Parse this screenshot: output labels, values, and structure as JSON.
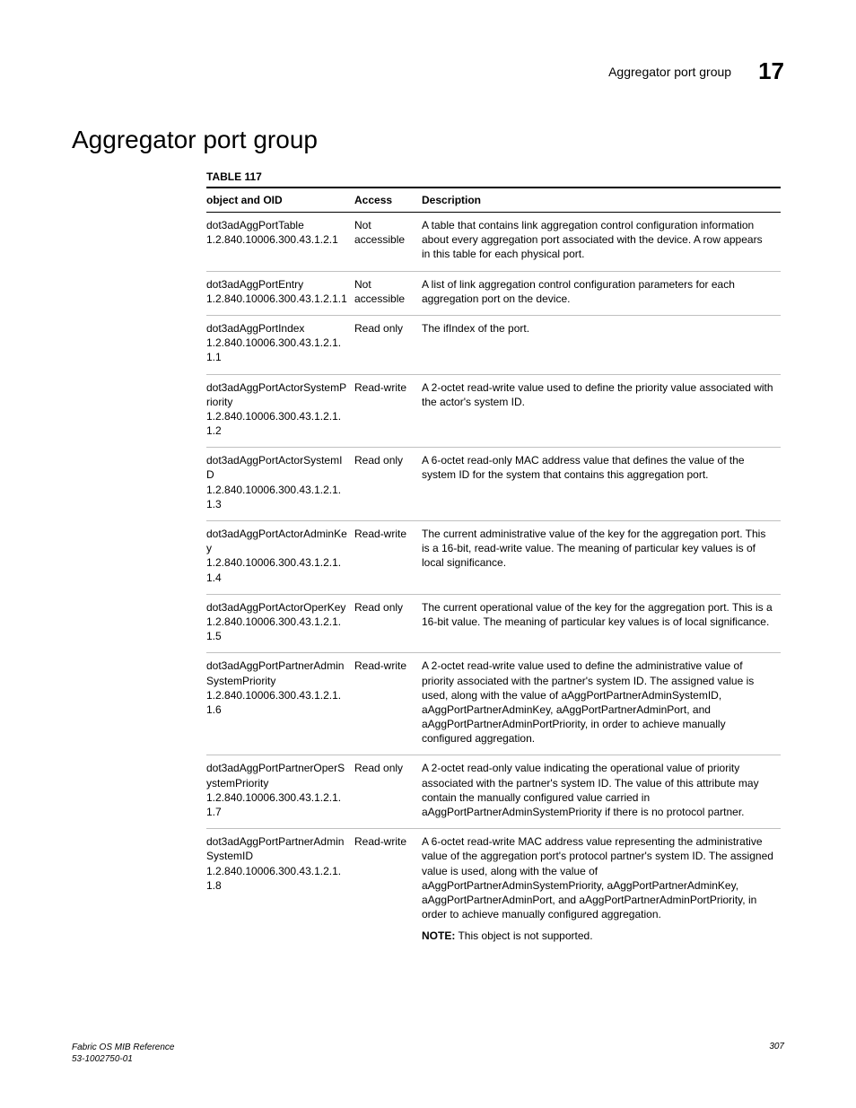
{
  "header": {
    "running_title": "Aggregator port group",
    "chapter_number": "17"
  },
  "heading": "Aggregator port group",
  "table": {
    "caption": "TABLE 117",
    "columns": [
      "object and OID",
      "Access",
      "Description"
    ],
    "rows": [
      {
        "name": "dot3adAggPortTable",
        "oid": "1.2.840.10006.300.43.1.2.1",
        "access": "Not accessible",
        "desc": "A table that contains link aggregation control configuration information about every aggregation port associated with the device. A row appears in this table for each physical port."
      },
      {
        "name": "dot3adAggPortEntry",
        "oid": "1.2.840.10006.300.43.1.2.1.1",
        "access": "Not accessible",
        "desc": "A list of link aggregation control configuration parameters for each aggregation port on the device."
      },
      {
        "name": "dot3adAggPortIndex",
        "oid": "1.2.840.10006.300.43.1.2.1.1.1",
        "access": "Read only",
        "desc": "The ifIndex of the port."
      },
      {
        "name": "dot3adAggPortActorSystemPriority",
        "oid": "1.2.840.10006.300.43.1.2.1.1.2",
        "access": "Read-write",
        "desc": "A 2-octet read-write value used to define the priority value associated with the actor's system ID."
      },
      {
        "name": "dot3adAggPortActorSystemID",
        "oid": "1.2.840.10006.300.43.1.2.1.1.3",
        "access": "Read only",
        "desc": "A 6-octet read-only MAC address value that defines the value of the system ID for the system that contains this aggregation port."
      },
      {
        "name": "dot3adAggPortActorAdminKey",
        "oid": "1.2.840.10006.300.43.1.2.1.1.4",
        "access": "Read-write",
        "desc": "The current administrative value of the key for the aggregation port. This is a 16-bit, read-write value. The meaning of particular key values is of local significance."
      },
      {
        "name": "dot3adAggPortActorOperKey",
        "oid": "1.2.840.10006.300.43.1.2.1.1.5",
        "access": "Read only",
        "desc": "The current operational value of the key for the aggregation port. This is a 16-bit value. The meaning of particular key values is of local significance."
      },
      {
        "name": "dot3adAggPortPartnerAdminSystemPriority",
        "oid": "1.2.840.10006.300.43.1.2.1.1.6",
        "access": "Read-write",
        "desc": "A 2-octet read-write value used to define the administrative value of priority associated with the partner's system ID. The assigned value is used, along with the value of aAggPortPartnerAdminSystemID, aAggPortPartnerAdminKey, aAggPortPartnerAdminPort, and aAggPortPartnerAdminPortPriority, in order to achieve manually configured aggregation."
      },
      {
        "name": "dot3adAggPortPartnerOperSystemPriority",
        "oid": "1.2.840.10006.300.43.1.2.1.1.7",
        "access": "Read only",
        "desc": "A 2-octet read-only value indicating the operational value of priority associated with the partner's system ID. The value of this attribute may contain the manually configured value carried in aAggPortPartnerAdminSystemPriority if there is no protocol partner."
      },
      {
        "name": "dot3adAggPortPartnerAdminSystemID",
        "oid": "1.2.840.10006.300.43.1.2.1.1.8",
        "access": "Read-write",
        "desc": "A 6-octet read-write MAC address value representing the administrative value of the aggregation port's protocol partner's system ID. The assigned value is used, along with the value of aAggPortPartnerAdminSystemPriority, aAggPortPartnerAdminKey, aAggPortPartnerAdminPort, and aAggPortPartnerAdminPortPriority, in order to achieve manually configured aggregation.",
        "note": "This object is not supported."
      }
    ]
  },
  "footer": {
    "doc_title": "Fabric OS MIB Reference",
    "doc_id": "53-1002750-01",
    "page": "307"
  },
  "note_label": "NOTE:"
}
